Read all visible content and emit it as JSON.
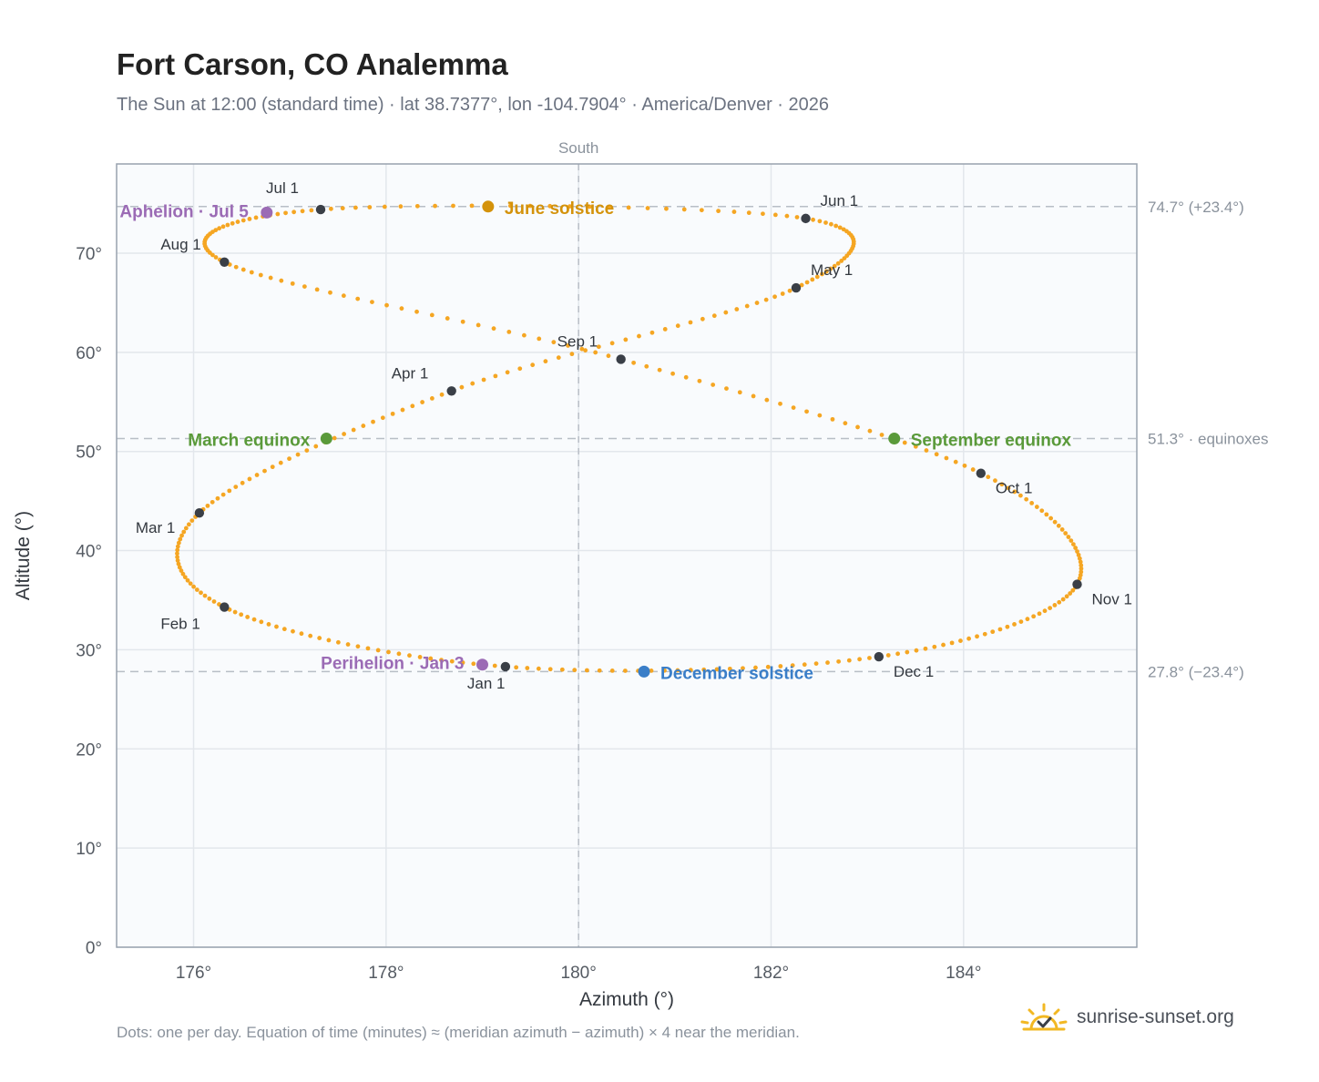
{
  "header": {
    "title": "Fort Carson, CO Analemma",
    "subtitle": "The Sun at 12:00 (standard time) · lat 38.7377°, lon -104.7904° · America/Denver · 2026"
  },
  "footer": {
    "note": "Dots: one per day. Equation of time (minutes) ≈ (meridian azimuth − azimuth) × 4 near the meridian.",
    "brand": "sunrise-sunset.org"
  },
  "colors": {
    "path": "#f5a623",
    "month_dot": "#3a3f47",
    "equinox": "#5a9a3a",
    "june_solstice": "#d4920a",
    "december_solstice": "#3a7ec8",
    "apsis": "#9b6bb5",
    "refline": "#b8bec6",
    "grid": "#e3e7ec",
    "plot_bg": "#f9fbfd",
    "frame": "#98a2ae"
  },
  "chart_data": {
    "type": "scatter",
    "xlabel": "Azimuth (°)",
    "ylabel": "Altitude (°)",
    "xlim": [
      175.2,
      185.8
    ],
    "ylim": [
      0,
      79
    ],
    "x_ticks": [
      176,
      178,
      180,
      182,
      184
    ],
    "x_tick_labels": [
      "176°",
      "178°",
      "180°",
      "182°",
      "184°"
    ],
    "y_ticks": [
      0,
      10,
      20,
      30,
      40,
      50,
      60,
      70
    ],
    "y_tick_labels": [
      "0°",
      "10°",
      "20°",
      "30°",
      "40°",
      "50°",
      "60°",
      "70°"
    ],
    "meridian": {
      "azimuth": 180,
      "label": "South"
    },
    "reference_lines": [
      {
        "altitude": 74.7,
        "label": "74.7° (+23.4°)"
      },
      {
        "altitude": 51.3,
        "label": "51.3° · equinoxes"
      },
      {
        "altitude": 27.8,
        "label": "27.8° (−23.4°)"
      }
    ],
    "series": [],
    "month_markers": [
      {
        "label": "Jan 1",
        "az": 179.24,
        "alt": 28.3
      },
      {
        "label": "Feb 1",
        "az": 176.32,
        "alt": 34.3
      },
      {
        "label": "Mar 1",
        "az": 176.06,
        "alt": 43.8
      },
      {
        "label": "Apr 1",
        "az": 178.68,
        "alt": 56.1
      },
      {
        "label": "May 1",
        "az": 182.26,
        "alt": 66.5
      },
      {
        "label": "Jun 1",
        "az": 182.36,
        "alt": 73.5
      },
      {
        "label": "Jul 1",
        "az": 177.32,
        "alt": 74.4
      },
      {
        "label": "Aug 1",
        "az": 176.32,
        "alt": 69.1
      },
      {
        "label": "Sep 1",
        "az": 180.44,
        "alt": 59.3
      },
      {
        "label": "Oct 1",
        "az": 184.18,
        "alt": 47.8
      },
      {
        "label": "Nov 1",
        "az": 185.18,
        "alt": 36.6
      },
      {
        "label": "Dec 1",
        "az": 183.12,
        "alt": 29.3
      }
    ],
    "events": [
      {
        "label": "March equinox",
        "az": 177.38,
        "alt": 51.3,
        "kind": "equinox"
      },
      {
        "label": "June solstice",
        "az": 179.06,
        "alt": 74.7,
        "kind": "june_solstice"
      },
      {
        "label": "September equinox",
        "az": 183.28,
        "alt": 51.3,
        "kind": "equinox"
      },
      {
        "label": "December solstice",
        "az": 180.68,
        "alt": 27.8,
        "kind": "december_solstice"
      },
      {
        "label": "Aphelion · Jul 5",
        "az": 176.76,
        "alt": 74.1,
        "kind": "apsis"
      },
      {
        "label": "Perihelion · Jan 3",
        "az": 179.0,
        "alt": 28.5,
        "kind": "apsis"
      }
    ]
  }
}
